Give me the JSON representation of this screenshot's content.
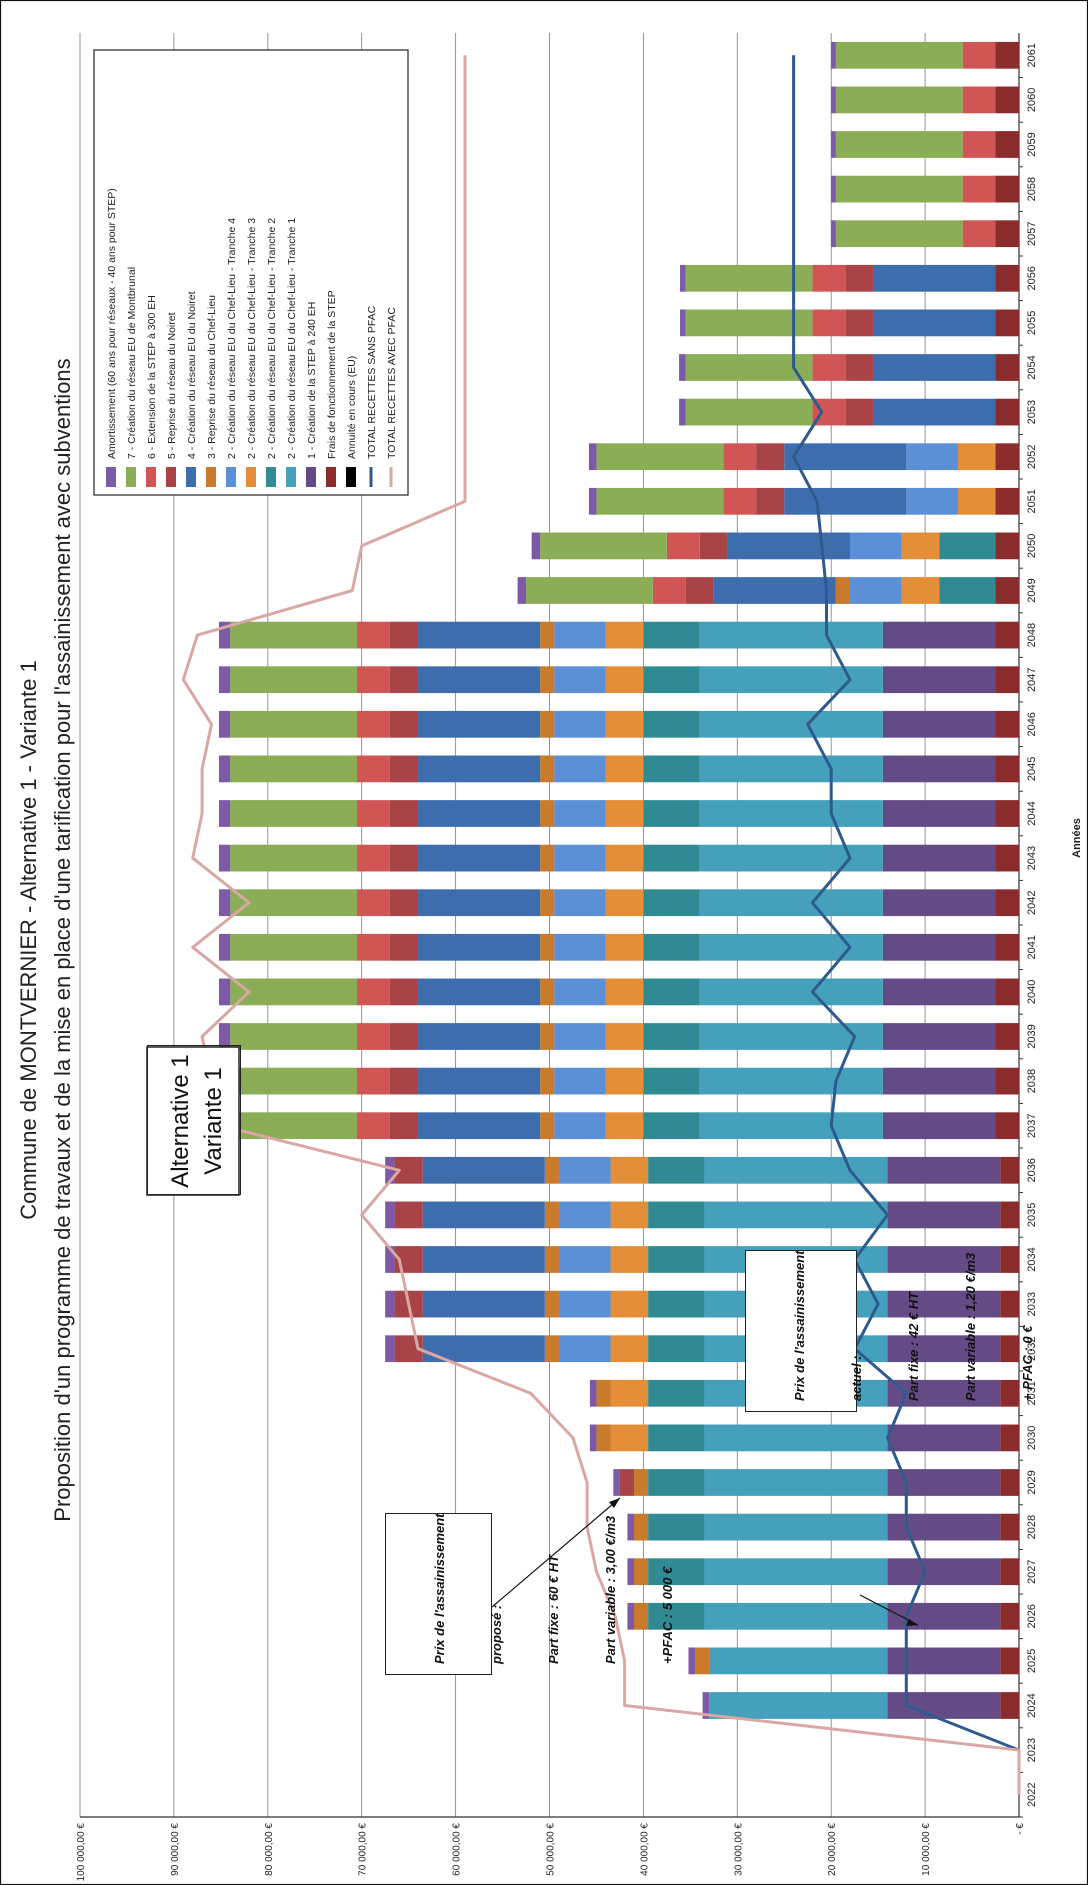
{
  "chart_data": {
    "type": "bar",
    "stacked": true,
    "title": "Commune de MONTVERNIER - Alternative 1 - Variante 1",
    "subtitle": "Proposition d'un programme de travaux et de la mise en place d'une tarification pour l'assainissement avec subventions",
    "xlabel": "Années",
    "ylabel": "",
    "ylim": [
      0,
      100000
    ],
    "yticks": [
      "-   €",
      "10 000,00 €",
      "20 000,00 €",
      "30 000,00 €",
      "40 000,00 €",
      "50 000,00 €",
      "60 000,00 €",
      "70 000,00 €",
      "80 000,00 €",
      "90 000,00 €",
      "100 000,00 €"
    ],
    "grid": true,
    "legend_position": "top-right",
    "categories": [
      "2022",
      "2023",
      "2024",
      "2025",
      "2026",
      "2027",
      "2028",
      "2029",
      "2030",
      "2031",
      "2032",
      "2033",
      "2034",
      "2035",
      "2036",
      "2037",
      "2038",
      "2039",
      "2040",
      "2041",
      "2042",
      "2043",
      "2044",
      "2045",
      "2046",
      "2047",
      "2048",
      "2049",
      "2050",
      "2051",
      "2052",
      "2053",
      "2054",
      "2055",
      "2056",
      "2057",
      "2058",
      "2059",
      "2060",
      "2061"
    ],
    "series": [
      {
        "name": "Frais de fonctionnement de la STEP",
        "color": "#8B2C2C",
        "type": "bar",
        "values": [
          0,
          0,
          2000,
          2000,
          2000,
          2000,
          2000,
          2000,
          2000,
          2000,
          2000,
          2000,
          2000,
          2000,
          2000,
          2500,
          2500,
          2500,
          2500,
          2500,
          2500,
          2500,
          2500,
          2500,
          2500,
          2500,
          2500,
          2500,
          2500,
          2500,
          2500,
          2500,
          2500,
          2500,
          2500,
          2500,
          2500,
          2500,
          2500,
          2500
        ]
      },
      {
        "name": "1 - Création de la STEP à 240 EH",
        "color": "#654B85",
        "type": "bar",
        "values": [
          0,
          0,
          12000,
          12000,
          12000,
          12000,
          12000,
          12000,
          12000,
          12000,
          12000,
          12000,
          12000,
          12000,
          12000,
          12000,
          12000,
          12000,
          12000,
          12000,
          12000,
          12000,
          12000,
          12000,
          12000,
          12000,
          12000,
          0,
          0,
          0,
          0,
          0,
          0,
          0,
          0,
          0,
          0,
          0,
          0,
          0
        ]
      },
      {
        "name": "2 - Création du réseau EU du Chef-Lieu - Tranche 1",
        "color": "#45A0BC",
        "type": "bar",
        "values": [
          0,
          0,
          19000,
          19000,
          19500,
          19500,
          19500,
          19500,
          19500,
          19500,
          19500,
          19500,
          19500,
          19500,
          19500,
          19500,
          19500,
          19500,
          19500,
          19500,
          19500,
          19500,
          19500,
          19500,
          19500,
          19500,
          19500,
          0,
          0,
          0,
          0,
          0,
          0,
          0,
          0,
          0,
          0,
          0,
          0,
          0
        ]
      },
      {
        "name": "2 - Création du réseau EU du Chef-Lieu - Tranche 2",
        "color": "#2F8A94",
        "type": "bar",
        "values": [
          0,
          0,
          0,
          0,
          6000,
          6000,
          6000,
          6000,
          6000,
          6000,
          6000,
          6000,
          6000,
          6000,
          6000,
          6000,
          6000,
          6000,
          6000,
          6000,
          6000,
          6000,
          6000,
          6000,
          6000,
          6000,
          6000,
          6000,
          6000,
          0,
          0,
          0,
          0,
          0,
          0,
          0,
          0,
          0,
          0,
          0
        ]
      },
      {
        "name": "2 - Création du réseau EU du Chef-Lieu - Tranche 3",
        "color": "#E58E38",
        "type": "bar",
        "values": [
          0,
          0,
          0,
          0,
          0,
          0,
          0,
          0,
          4000,
          4000,
          4000,
          4000,
          4000,
          4000,
          4000,
          4000,
          4000,
          4000,
          4000,
          4000,
          4000,
          4000,
          4000,
          4000,
          4000,
          4000,
          4000,
          4000,
          4000,
          4000,
          4000,
          0,
          0,
          0,
          0,
          0,
          0,
          0,
          0,
          0
        ]
      },
      {
        "name": "2 - Création du réseau EU du Chef-Lieu - Tranche 4",
        "color": "#5B8FD6",
        "type": "bar",
        "values": [
          0,
          0,
          0,
          0,
          0,
          0,
          0,
          0,
          0,
          0,
          5500,
          5500,
          5500,
          5500,
          5500,
          5500,
          5500,
          5500,
          5500,
          5500,
          5500,
          5500,
          5500,
          5500,
          5500,
          5500,
          5500,
          5500,
          5500,
          5500,
          5500,
          0,
          0,
          0,
          0,
          0,
          0,
          0,
          0,
          0
        ]
      },
      {
        "name": "3 - Reprise du réseau du Chef-Lieu",
        "color": "#C97A2C",
        "type": "bar",
        "values": [
          0,
          0,
          0,
          1500,
          1500,
          1500,
          1500,
          1500,
          1500,
          1500,
          1500,
          1500,
          1500,
          1500,
          1500,
          1500,
          1500,
          1500,
          1500,
          1500,
          1500,
          1500,
          1500,
          1500,
          1500,
          1500,
          1500,
          1500,
          0,
          0,
          0,
          0,
          0,
          0,
          0,
          0,
          0,
          0,
          0,
          0
        ]
      },
      {
        "name": "4 - Création du réseau EU du Noiret",
        "color": "#3E6DAE",
        "type": "bar",
        "values": [
          0,
          0,
          0,
          0,
          0,
          0,
          0,
          0,
          0,
          0,
          13000,
          13000,
          13000,
          13000,
          13000,
          13000,
          13000,
          13000,
          13000,
          13000,
          13000,
          13000,
          13000,
          13000,
          13000,
          13000,
          13000,
          13000,
          13000,
          13000,
          13000,
          13000,
          13000,
          13000,
          13000,
          0,
          0,
          0,
          0,
          0
        ]
      },
      {
        "name": "5 - Reprise du réseau du Noiret",
        "color": "#A84447",
        "type": "bar",
        "values": [
          0,
          0,
          0,
          0,
          0,
          0,
          0,
          1500,
          0,
          0,
          3000,
          3000,
          3000,
          3000,
          3000,
          3000,
          3000,
          3000,
          3000,
          3000,
          3000,
          3000,
          3000,
          3000,
          3000,
          3000,
          3000,
          3000,
          3000,
          3000,
          3000,
          3000,
          3000,
          3000,
          3000,
          0,
          0,
          0,
          0,
          0
        ]
      },
      {
        "name": "6 - Extension de la STEP à 300 EH",
        "color": "#CF5654",
        "type": "bar",
        "values": [
          0,
          0,
          0,
          0,
          0,
          0,
          0,
          0,
          0,
          0,
          0,
          0,
          0,
          0,
          0,
          3500,
          3500,
          3500,
          3500,
          3500,
          3500,
          3500,
          3500,
          3500,
          3500,
          3500,
          3500,
          3500,
          3500,
          3500,
          3500,
          3500,
          3500,
          3500,
          3500,
          3500,
          3500,
          3500,
          3500,
          3500
        ]
      },
      {
        "name": "7 - Création du réseau EU de Montbrunal",
        "color": "#8BAD55",
        "type": "bar",
        "values": [
          0,
          0,
          0,
          0,
          0,
          0,
          0,
          0,
          0,
          0,
          0,
          0,
          0,
          0,
          0,
          13500,
          13500,
          13500,
          13500,
          13500,
          13500,
          13500,
          13500,
          13500,
          13500,
          13500,
          13500,
          13500,
          13500,
          13500,
          13500,
          13500,
          13500,
          13500,
          13500,
          13500,
          13500,
          13500,
          13500,
          13500
        ]
      },
      {
        "name": "Amortissement (60 ans pour réseaux - 40 ans pour STEP)",
        "color": "#7C5AA6",
        "type": "bar",
        "values": [
          0,
          0,
          700,
          700,
          700,
          700,
          700,
          700,
          700,
          700,
          1000,
          1000,
          1000,
          1000,
          1000,
          1200,
          1200,
          1200,
          1200,
          1200,
          1200,
          1200,
          1200,
          1200,
          1200,
          1200,
          1200,
          900,
          900,
          800,
          800,
          700,
          700,
          600,
          600,
          500,
          500,
          500,
          500,
          500
        ]
      },
      {
        "name": "Annuité en cours (EU)",
        "color": "#000000",
        "type": "bar",
        "values": [
          0,
          0,
          0,
          0,
          0,
          0,
          0,
          0,
          0,
          0,
          0,
          0,
          0,
          0,
          0,
          0,
          0,
          0,
          0,
          0,
          0,
          0,
          0,
          0,
          0,
          0,
          0,
          0,
          0,
          0,
          0,
          0,
          0,
          0,
          0,
          0,
          0,
          0,
          0,
          0
        ]
      },
      {
        "name": "TOTAL RECETTES SANS PFAC",
        "color": "#2E5A8F",
        "type": "line",
        "values": [
          0,
          0,
          12000,
          12000,
          12000,
          10000,
          12000,
          12000,
          14000,
          12000,
          17500,
          15000,
          17500,
          14000,
          18000,
          20000,
          19500,
          17500,
          22000,
          18000,
          22000,
          18000,
          20000,
          20000,
          22500,
          18000,
          20500,
          20500,
          21000,
          21500,
          24000,
          21000,
          24000,
          24000,
          24000,
          24000,
          24000,
          24000,
          24000,
          24000
        ]
      },
      {
        "name": "TOTAL RECETTES AVEC PFAC",
        "color": "#D9A7A4",
        "type": "line",
        "values": [
          0,
          0,
          42000,
          42000,
          43000,
          45000,
          46000,
          46000,
          47500,
          52000,
          64000,
          65000,
          66000,
          70000,
          66000,
          85000,
          86000,
          87000,
          82000,
          88000,
          82000,
          88000,
          87000,
          87000,
          86000,
          89000,
          87500,
          71000,
          70000,
          59000,
          59000,
          59000,
          59000,
          59000,
          59000,
          59000,
          59000,
          59000,
          59000,
          59000
        ]
      }
    ]
  },
  "annotations": {
    "alternative_box": [
      "Alternative 1",
      "Variante 1"
    ],
    "proposed_price": [
      "Prix de l'assainissement",
      "proposé :",
      "Part fixe : 60 € HT",
      "Part variable : 3,00 €/m3",
      "+PFAC : 5 000 €"
    ],
    "current_price": [
      "Prix de l'assainissement",
      "actuel :",
      "Part fixe : 42 € HT",
      "Part variable : 1,20 €/m3",
      "+ PFAC : 0 €"
    ]
  }
}
